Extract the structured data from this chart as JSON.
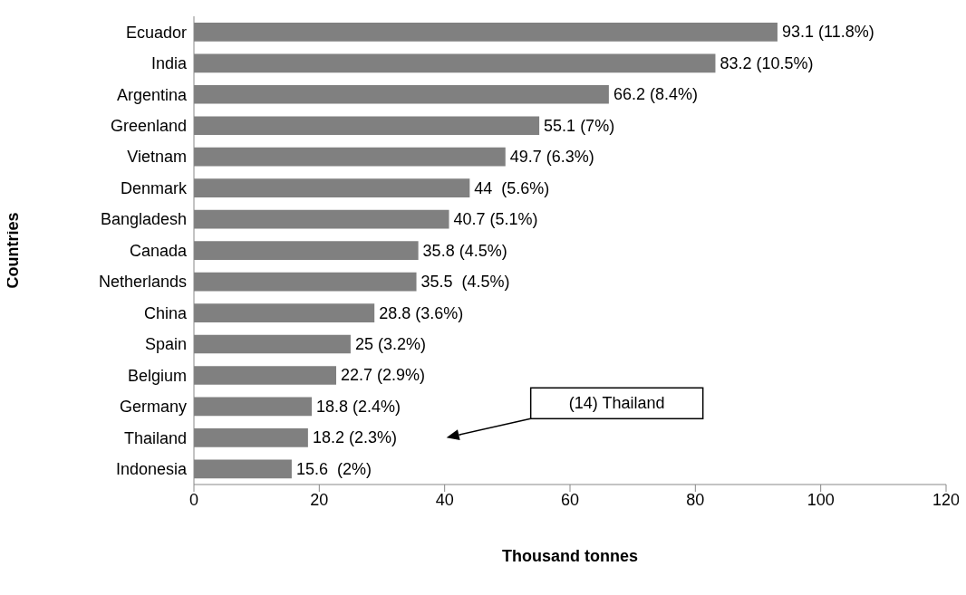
{
  "chart_data": {
    "type": "bar",
    "orientation": "horizontal",
    "xlabel": "Thousand tonnes",
    "ylabel": "Countries",
    "categories": [
      "Ecuador",
      "India",
      "Argentina",
      "Greenland",
      "Vietnam",
      "Denmark",
      "Bangladesh",
      "Canada",
      "Netherlands",
      "China",
      "Spain",
      "Belgium",
      "Germany",
      "Thailand",
      "Indonesia"
    ],
    "values": [
      93.1,
      83.2,
      66.2,
      55.1,
      49.7,
      44,
      40.7,
      35.8,
      35.5,
      28.8,
      25,
      22.7,
      18.8,
      18.2,
      15.6
    ],
    "value_labels": [
      "93.1 (11.8%)",
      "83.2 (10.5%)",
      "66.2 (8.4%)",
      "55.1 (7%)",
      "49.7 (6.3%)",
      "44  (5.6%)",
      "40.7 (5.1%)",
      "35.8 (4.5%)",
      "35.5  (4.5%)",
      "28.8 (3.6%)",
      "25 (3.2%)",
      "22.7 (2.9%)",
      "18.8 (2.4%)",
      "18.2 (2.3%)",
      "15.6  (2%)"
    ],
    "color": "#808080",
    "xlim": [
      0,
      120
    ],
    "xticks": [
      0,
      20,
      40,
      60,
      80,
      100,
      120
    ],
    "grid": false,
    "legend": false,
    "annotations": [
      "(14) Thailand"
    ]
  }
}
